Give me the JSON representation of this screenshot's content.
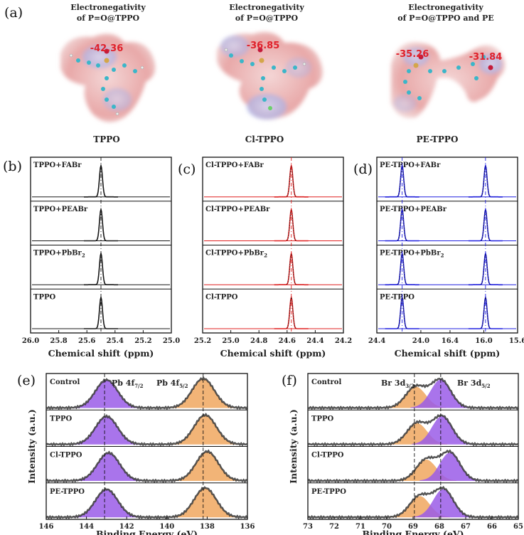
{
  "panel_labels": [
    "(a)",
    "(b)",
    "(c)",
    "(d)",
    "(e)",
    "(f)"
  ],
  "molecules": [
    {
      "title_line1": "Electronegativity",
      "title_line2": "of P=O@TPPO",
      "values": [
        "-42.36"
      ],
      "name": "TPPO"
    },
    {
      "title_line1": "Electronegativity",
      "title_line2": "of P=O@TPPO",
      "values": [
        "-36.85"
      ],
      "name": "Cl-TPPO"
    },
    {
      "title_line1": "Electronegativity",
      "title_line2": "of P=O@TPPO and PE",
      "values": [
        "-35.26",
        "-31.84"
      ],
      "name": "PE-TPPO"
    }
  ],
  "colors": {
    "b": "#1a1a1a",
    "c": "#e02020",
    "d": "#2020e0",
    "fit": "#111111",
    "orange": "#f0a860",
    "purple": "#9b5ce8"
  },
  "chart_data": [
    {
      "id": "b",
      "type": "line",
      "xlabel": "Chemical shift (ppm)",
      "xlim": [
        26.0,
        25.0
      ],
      "xticks": [
        "26.0",
        "25.8",
        "25.6",
        "25.4",
        "25.2",
        "25.0"
      ],
      "rows": [
        "TPPO+FABr",
        "TPPO+PEABr",
        "TPPO+PbBr",
        "TPPO"
      ],
      "row_subscripts": [
        "",
        "",
        "2",
        ""
      ],
      "peaks": [
        25.5
      ],
      "marker_line": 25.5
    },
    {
      "id": "c",
      "type": "line",
      "xlabel": "Chemical shift (ppm)",
      "xlim": [
        25.2,
        24.2
      ],
      "xticks": [
        "25.2",
        "25.0",
        "24.8",
        "24.6",
        "24.4",
        "24.2"
      ],
      "rows": [
        "Cl-TPPO+FABr",
        "Cl-TPPO+PEABr",
        "Cl-TPPO+PbBr",
        "Cl-TPPO"
      ],
      "row_subscripts": [
        "",
        "",
        "2",
        ""
      ],
      "peaks": [
        24.57
      ],
      "marker_line": 24.57
    },
    {
      "id": "d",
      "type": "line",
      "xlabel": "Chemical shift (ppm)",
      "xlim": [
        24.4,
        15.6
      ],
      "xticks": [
        "24.4",
        "24.0",
        "16.4",
        "16.0",
        "15.6"
      ],
      "rows": [
        "PE-TPPO+FABr",
        "PE-TPPO+PEABr",
        "PE-TPPO+PbBr",
        "PE-TPPO"
      ],
      "row_subscripts": [
        "",
        "",
        "2",
        ""
      ],
      "peaks": [
        24.17,
        15.98
      ],
      "marker_lines": [
        24.17,
        15.98
      ]
    },
    {
      "id": "e",
      "type": "area",
      "xlabel": "Binding Energy (eV)",
      "ylabel": "Intensity (a.u.)",
      "xlim": [
        146,
        136
      ],
      "xticks": [
        "146",
        "144",
        "142",
        "140",
        "138",
        "136"
      ],
      "rows": [
        "Control",
        "TPPO",
        "Cl-TPPO",
        "PE-TPPO"
      ],
      "peak_labels": [
        {
          "main": "Pb 4f",
          "sub": "7/2"
        },
        {
          "main": "Pb 4f",
          "sub": "5/2"
        }
      ],
      "marker_lines": [
        143.1,
        138.2
      ],
      "components": [
        {
          "name": "Pb 4f 7/2",
          "color": "purple",
          "centers": [
            143.0,
            143.0,
            142.9,
            143.0
          ]
        },
        {
          "name": "Pb 4f 5/2",
          "color": "orange",
          "centers": [
            138.2,
            138.1,
            138.0,
            138.1
          ]
        }
      ]
    },
    {
      "id": "f",
      "type": "area",
      "xlabel": "Binding Energy (eV)",
      "ylabel": "Intensity (a.u.)",
      "xlim": [
        73,
        65
      ],
      "xticks": [
        "73",
        "72",
        "71",
        "70",
        "69",
        "68",
        "67",
        "66",
        "65"
      ],
      "rows": [
        "Control",
        "TPPO",
        "Cl-TPPO",
        "PE-TPPO"
      ],
      "peak_labels": [
        {
          "main": "Br 3d",
          "sub": "3/2"
        },
        {
          "main": "Br 3d",
          "sub": "5/2"
        }
      ],
      "marker_lines": [
        68.95,
        67.95
      ],
      "components": [
        {
          "name": "Br 3d 3/2",
          "color": "orange",
          "centers": [
            68.9,
            68.85,
            68.5,
            68.75
          ]
        },
        {
          "name": "Br 3d 5/2",
          "color": "purple",
          "centers": [
            67.95,
            67.9,
            67.6,
            67.85
          ]
        }
      ]
    }
  ]
}
